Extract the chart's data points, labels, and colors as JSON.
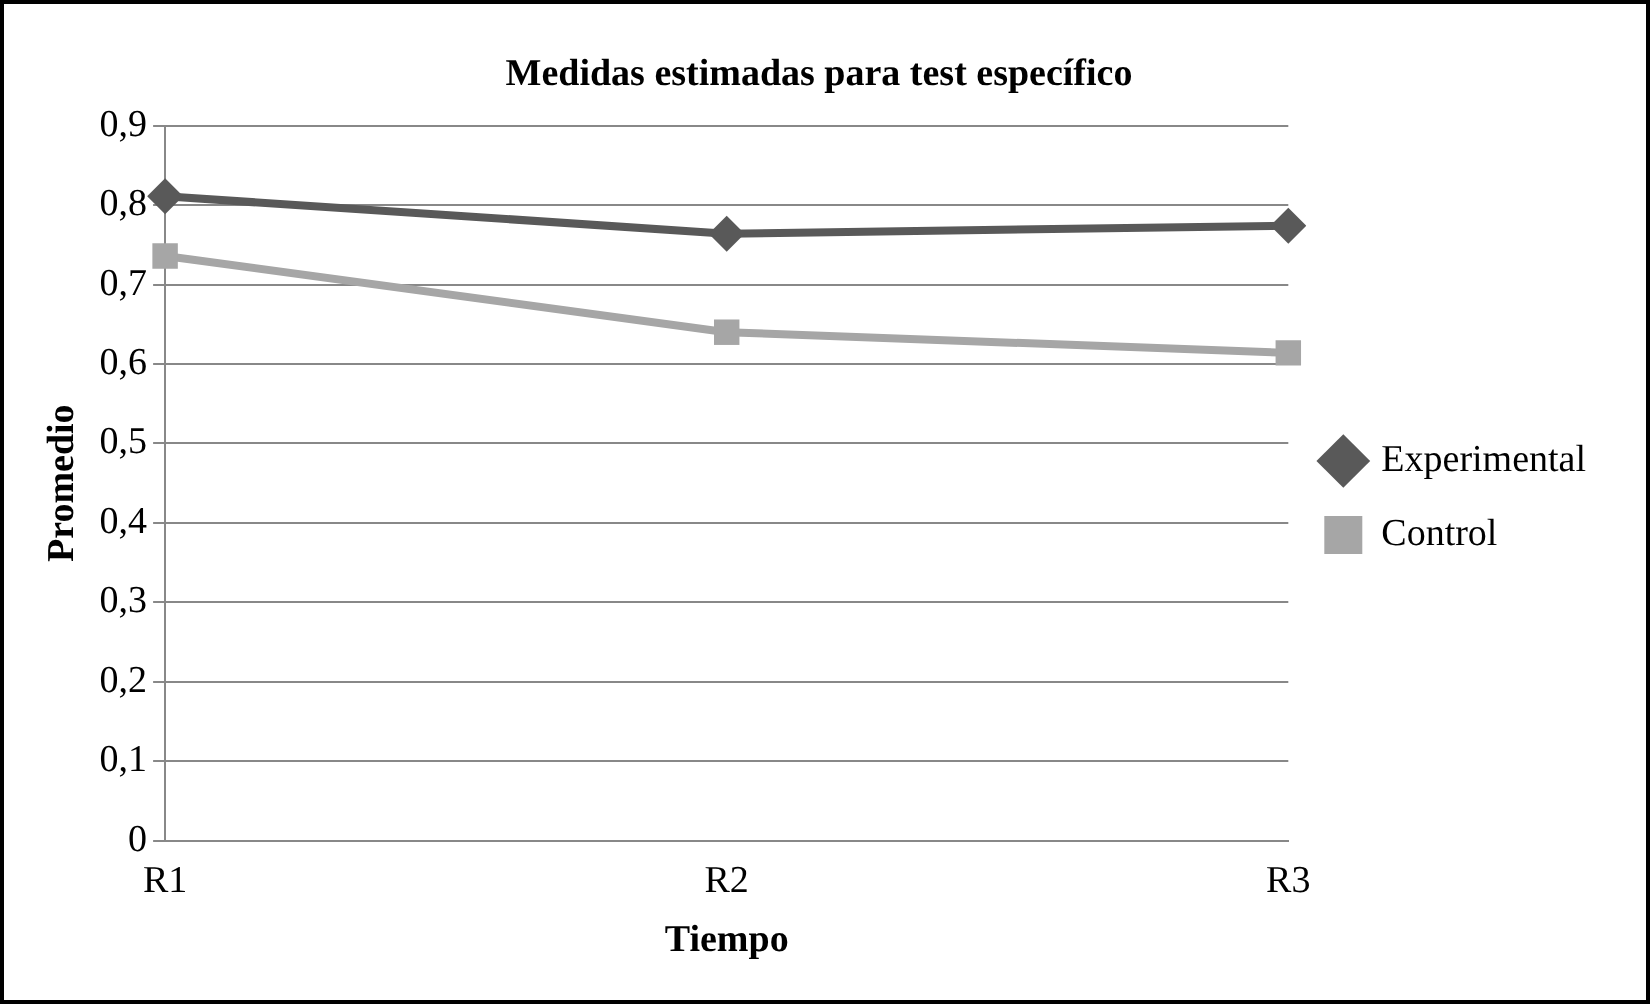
{
  "chart_data": {
    "type": "line",
    "title": "Medidas estimadas para test específico",
    "xlabel": "Tiempo",
    "ylabel": "Promedio",
    "categories": [
      "R1",
      "R2",
      "R3"
    ],
    "series": [
      {
        "name": "Experimental",
        "color": "#595959",
        "marker": "diamond",
        "values": [
          0.811,
          0.764,
          0.774
        ]
      },
      {
        "name": "Control",
        "color": "#a6a6a6",
        "marker": "square",
        "values": [
          0.736,
          0.64,
          0.614
        ]
      }
    ],
    "ylim": [
      0,
      0.9
    ],
    "yticks": [
      {
        "value": 0,
        "label": "0"
      },
      {
        "value": 0.1,
        "label": "0,1"
      },
      {
        "value": 0.2,
        "label": "0,2"
      },
      {
        "value": 0.3,
        "label": "0,3"
      },
      {
        "value": 0.4,
        "label": "0,4"
      },
      {
        "value": 0.5,
        "label": "0,5"
      },
      {
        "value": 0.6,
        "label": "0,6"
      },
      {
        "value": 0.7,
        "label": "0,7"
      },
      {
        "value": 0.8,
        "label": "0,8"
      },
      {
        "value": 0.9,
        "label": "0,9"
      }
    ],
    "grid": "y",
    "legend": "right",
    "line_style": "solid"
  }
}
